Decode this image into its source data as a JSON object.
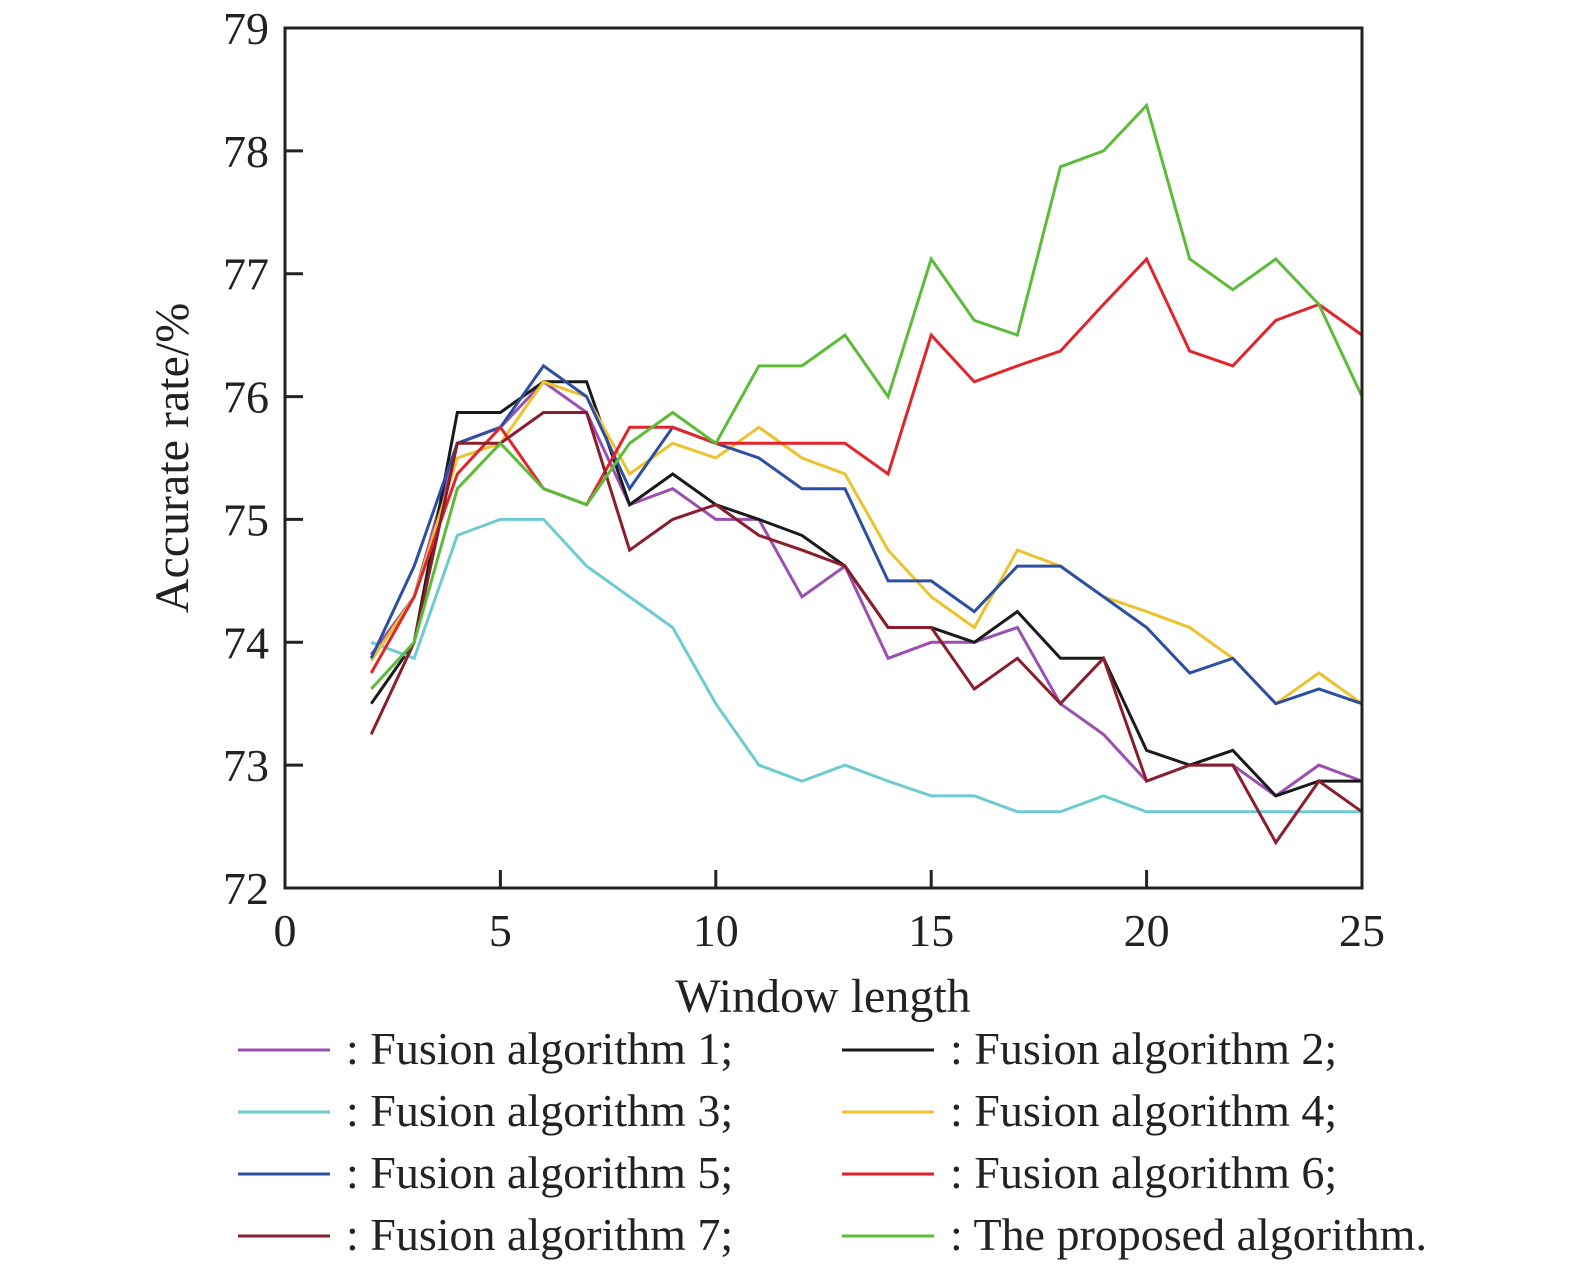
{
  "chart_data": {
    "type": "line",
    "title": "",
    "xlabel": "Window length",
    "ylabel": "Accurate rate/%",
    "xlim": [
      0,
      25
    ],
    "ylim": [
      72,
      79
    ],
    "xticks": [
      0,
      5,
      10,
      15,
      20,
      25
    ],
    "yticks": [
      72,
      73,
      74,
      75,
      76,
      77,
      78,
      79
    ],
    "xtick_labels": [
      "0",
      "5",
      "10",
      "15",
      "20",
      "25"
    ],
    "ytick_labels": [
      "72",
      "73",
      "74",
      "75",
      "76",
      "77",
      "78",
      "79"
    ],
    "grid": false,
    "legend_placement": "bottom",
    "x": [
      2,
      3,
      4,
      5,
      6,
      7,
      8,
      9,
      10,
      11,
      12,
      13,
      14,
      15,
      16,
      17,
      18,
      19,
      20,
      21,
      22,
      23,
      24,
      25
    ],
    "series": [
      {
        "name": ": Fusion algorithm 1;",
        "color": "#9b4fb0",
        "values": [
          73.9,
          74.37,
          75.62,
          75.75,
          76.12,
          75.87,
          75.12,
          75.25,
          75.0,
          75.0,
          74.37,
          74.62,
          73.87,
          74.0,
          74.0,
          74.12,
          73.5,
          73.25,
          72.87,
          73.0,
          73.0,
          72.75,
          73.0,
          72.87
        ]
      },
      {
        "name": ": Fusion algorithm 2;",
        "color": "#1a1a1a",
        "values": [
          73.5,
          74.0,
          75.87,
          75.87,
          76.12,
          76.12,
          75.12,
          75.37,
          75.12,
          75.0,
          74.87,
          74.62,
          74.12,
          74.12,
          74.0,
          74.25,
          73.87,
          73.87,
          73.12,
          73.0,
          73.12,
          72.75,
          72.87,
          72.87
        ]
      },
      {
        "name": ": Fusion algorithm 3;",
        "color": "#6ecbd0",
        "values": [
          74.0,
          73.87,
          74.87,
          75.0,
          75.0,
          74.62,
          74.37,
          74.12,
          73.5,
          73.0,
          72.87,
          73.0,
          72.87,
          72.75,
          72.75,
          72.62,
          72.62,
          72.75,
          72.62,
          72.62,
          72.62,
          72.62,
          72.62,
          72.62
        ]
      },
      {
        "name": ": Fusion algorithm 4;",
        "color": "#ecc22e",
        "values": [
          73.85,
          74.37,
          75.5,
          75.62,
          76.12,
          76.0,
          75.37,
          75.62,
          75.5,
          75.75,
          75.5,
          75.37,
          74.75,
          74.37,
          74.12,
          74.75,
          74.62,
          74.37,
          74.25,
          74.12,
          73.87,
          73.5,
          73.75,
          73.5
        ]
      },
      {
        "name": ": Fusion algorithm 5;",
        "color": "#2c4fa3",
        "values": [
          73.87,
          74.62,
          75.62,
          75.75,
          76.25,
          76.0,
          75.25,
          75.75,
          75.62,
          75.5,
          75.25,
          75.25,
          74.5,
          74.5,
          74.25,
          74.62,
          74.62,
          74.37,
          74.12,
          73.75,
          73.87,
          73.5,
          73.62,
          73.5
        ]
      },
      {
        "name": ": Fusion algorithm 6;",
        "color": "#e1252a",
        "values": [
          73.75,
          74.37,
          75.37,
          75.75,
          75.25,
          75.12,
          75.75,
          75.75,
          75.62,
          75.62,
          75.62,
          75.62,
          75.37,
          76.5,
          76.12,
          76.25,
          76.37,
          76.75,
          77.12,
          76.37,
          76.25,
          76.62,
          76.75,
          76.5
        ]
      },
      {
        "name": ": Fusion algorithm 7;",
        "color": "#8b1e2e",
        "values": [
          73.25,
          74.0,
          75.62,
          75.62,
          75.87,
          75.87,
          74.75,
          75.0,
          75.12,
          74.87,
          74.75,
          74.62,
          74.12,
          74.12,
          73.62,
          73.87,
          73.5,
          73.87,
          72.87,
          73.0,
          73.0,
          72.37,
          72.87,
          72.62
        ]
      },
      {
        "name": ": The proposed algorithm.",
        "color": "#5dbb3a",
        "values": [
          73.62,
          74.0,
          75.25,
          75.62,
          75.25,
          75.12,
          75.62,
          75.87,
          75.62,
          76.25,
          76.25,
          76.5,
          76.0,
          77.12,
          76.62,
          76.5,
          77.87,
          78.0,
          78.37,
          77.12,
          76.87,
          77.12,
          76.75,
          76.0
        ]
      }
    ]
  }
}
